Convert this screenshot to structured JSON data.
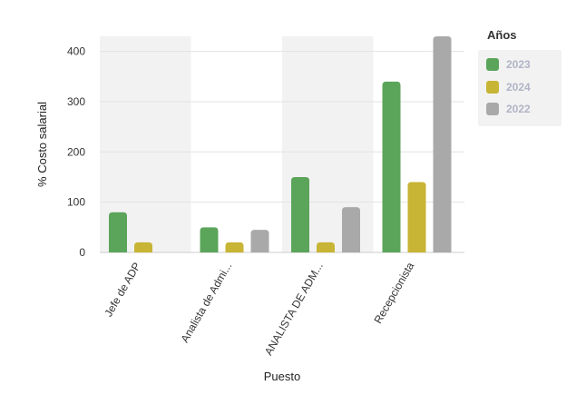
{
  "chart_data": {
    "type": "bar",
    "categories": [
      "Jefe de ADP",
      "Analista de Admi...",
      "ANALISTA DE ADM...",
      "Recepcionista"
    ],
    "series": [
      {
        "name": "2023",
        "color": "#5ba55a",
        "values": [
          80,
          50,
          150,
          340
        ]
      },
      {
        "name": "2024",
        "color": "#c8b435",
        "values": [
          20,
          20,
          20,
          140
        ]
      },
      {
        "name": "2022",
        "color": "#a9a9a9",
        "values": [
          null,
          45,
          90,
          430
        ]
      }
    ],
    "xlabel": "Puesto",
    "ylabel": "% Costo salarial",
    "ylim": [
      0,
      430
    ],
    "yticks": [
      0,
      100,
      200,
      300,
      400
    ],
    "grid": true,
    "legend": {
      "title": "Años",
      "placement": "top-right"
    }
  }
}
